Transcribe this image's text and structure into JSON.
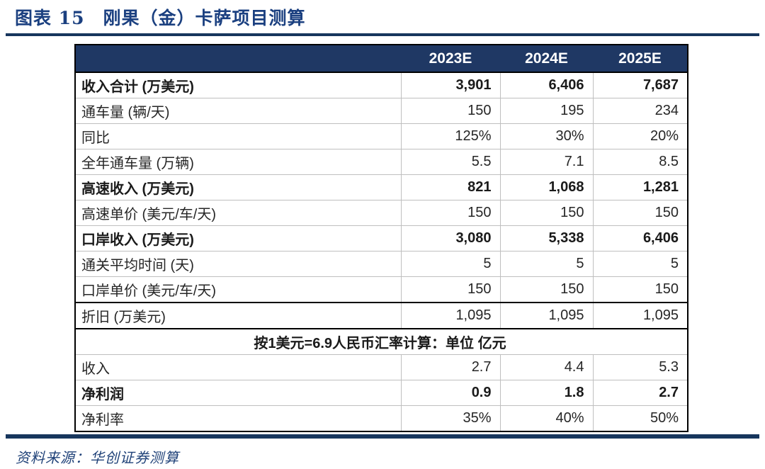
{
  "title": {
    "label": "图表 15",
    "text": "刚果（金）卡萨项目测算"
  },
  "colors": {
    "header_navy": "#1f3864",
    "rule_navy": "#17365d",
    "title_blue": "#1b4080",
    "source_blue": "#1f4178",
    "gridline_gray": "#bfbfbf",
    "body_text": "#262626"
  },
  "table": {
    "columns": [
      "2023E",
      "2024E",
      "2025E"
    ],
    "rows": [
      {
        "label": "收入合计 (万美元)",
        "values": [
          "3,901",
          "6,406",
          "7,687"
        ],
        "bold": true
      },
      {
        "label": "通车量 (辆/天)",
        "values": [
          "150",
          "195",
          "234"
        ],
        "bold": false
      },
      {
        "label": "同比",
        "values": [
          "125%",
          "30%",
          "20%"
        ],
        "bold": false
      },
      {
        "label": "全年通车量 (万辆)",
        "values": [
          "5.5",
          "7.1",
          "8.5"
        ],
        "bold": false
      },
      {
        "label": "高速收入 (万美元)",
        "values": [
          "821",
          "1,068",
          "1,281"
        ],
        "bold": true
      },
      {
        "label": "高速单价 (美元/车/天)",
        "values": [
          "150",
          "150",
          "150"
        ],
        "bold": false
      },
      {
        "label": "口岸收入 (万美元)",
        "values": [
          "3,080",
          "5,338",
          "6,406"
        ],
        "bold": true
      },
      {
        "label": "通关平均时间 (天)",
        "values": [
          "5",
          "5",
          "5"
        ],
        "bold": false
      },
      {
        "label": "口岸单价 (美元/车/天)",
        "values": [
          "150",
          "150",
          "150"
        ],
        "bold": false
      },
      {
        "label": "折旧 (万美元)",
        "values": [
          "1,095",
          "1,095",
          "1,095"
        ],
        "bold": false,
        "thick": true
      },
      {
        "merged": "按1美元=6.9人民币汇率计算：单位 亿元",
        "bold": true
      },
      {
        "label": "收入",
        "values": [
          "2.7",
          "4.4",
          "5.3"
        ],
        "bold": false
      },
      {
        "label": "净利润",
        "values": [
          "0.9",
          "1.8",
          "2.7"
        ],
        "bold": true
      },
      {
        "label": "净利率",
        "values": [
          "35%",
          "40%",
          "50%"
        ],
        "bold": false
      }
    ]
  },
  "footer": {
    "source": "资料来源：华创证券测算"
  }
}
